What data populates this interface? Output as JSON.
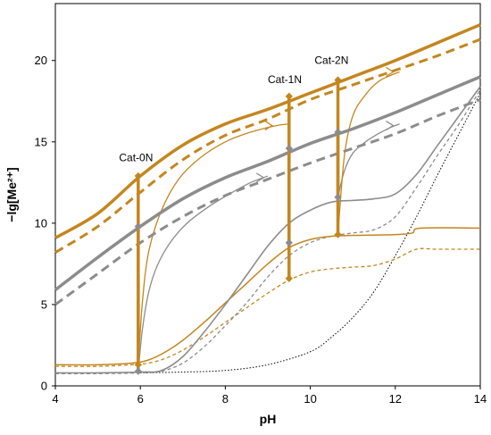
{
  "chart_data": {
    "type": "line",
    "title": "",
    "xlabel": "pH",
    "ylabel": "−lg[Me²⁺]",
    "xlim": [
      4,
      14
    ],
    "ylim": [
      0,
      23.5
    ],
    "xticks": [
      4,
      6,
      8,
      10,
      12,
      14
    ],
    "yticks": [
      0,
      5,
      10,
      15,
      20
    ],
    "grid": false,
    "legend": "none",
    "colors": {
      "orange": "#C4861E",
      "gray": "#8C8C8C",
      "black": "#000000"
    },
    "series": [
      {
        "id": "orange-thick-solid",
        "color": "#C4861E",
        "width": 3.5,
        "dash": "",
        "x": [
          4,
          5,
          6,
          7,
          8,
          9,
          10,
          11,
          12,
          13,
          14
        ],
        "y": [
          9.1,
          10.6,
          12.9,
          14.8,
          16.1,
          17.0,
          18.0,
          19.0,
          20.0,
          21.1,
          22.2
        ]
      },
      {
        "id": "orange-thick-dashed",
        "color": "#C4861E",
        "width": 3,
        "dash": "10,6",
        "x": [
          4,
          5,
          6,
          7,
          8,
          9,
          10,
          11,
          12,
          13,
          14
        ],
        "y": [
          8.2,
          9.8,
          11.9,
          13.9,
          15.4,
          16.4,
          17.6,
          18.5,
          19.4,
          20.3,
          21.3
        ]
      },
      {
        "id": "gray-thick-solid",
        "color": "#8C8C8C",
        "width": 3.5,
        "dash": "",
        "x": [
          4,
          5,
          6,
          7,
          8,
          9,
          10,
          11,
          12,
          13,
          14
        ],
        "y": [
          5.9,
          7.9,
          9.8,
          11.5,
          12.8,
          13.8,
          14.9,
          15.8,
          16.8,
          17.9,
          19.0
        ]
      },
      {
        "id": "gray-thick-dashed",
        "color": "#8C8C8C",
        "width": 3,
        "dash": "10,6",
        "x": [
          4,
          5,
          6,
          7,
          8,
          9,
          10,
          11,
          12,
          13,
          14
        ],
        "y": [
          5.0,
          6.9,
          8.8,
          10.4,
          11.7,
          12.7,
          13.7,
          14.6,
          15.5,
          16.6,
          17.6
        ]
      },
      {
        "id": "orange-thin-solid",
        "color": "#C4861E",
        "width": 1.5,
        "dash": "",
        "x": [
          4,
          5,
          5.8,
          6.2,
          6.6,
          7,
          7.5,
          8,
          8.5,
          9,
          9.5,
          10,
          10.5,
          11,
          12,
          12.4,
          12.6,
          14
        ],
        "y": [
          1.3,
          1.3,
          1.4,
          1.6,
          2.1,
          2.8,
          3.9,
          5.1,
          6.3,
          7.5,
          8.5,
          9.0,
          9.2,
          9.25,
          9.3,
          9.4,
          9.7,
          9.7
        ]
      },
      {
        "id": "orange-thin-dashed",
        "color": "#C4861E",
        "width": 1.3,
        "dash": "4,3",
        "x": [
          4,
          5,
          5.8,
          6.2,
          6.6,
          7,
          7.5,
          8,
          8.5,
          9,
          9.5,
          10,
          10.5,
          11,
          11.5,
          12,
          12.5,
          13,
          14
        ],
        "y": [
          1.2,
          1.2,
          1.3,
          1.4,
          1.7,
          2.2,
          3.0,
          3.9,
          4.8,
          5.7,
          6.5,
          7.0,
          7.2,
          7.3,
          7.4,
          7.8,
          8.4,
          8.4,
          8.4
        ]
      },
      {
        "id": "gray-thin-solid-1",
        "color": "#8C8C8C",
        "width": 1.6,
        "dash": "",
        "x": [
          4,
          5,
          6,
          6.5,
          7,
          7.5,
          8,
          8.5,
          9,
          9.5,
          10,
          10.5,
          11,
          11.5,
          12,
          12.5,
          13,
          13.5,
          14
        ],
        "y": [
          0.8,
          0.8,
          0.85,
          0.95,
          1.8,
          3.3,
          5.0,
          6.8,
          8.6,
          10.0,
          10.8,
          11.3,
          11.4,
          11.5,
          11.8,
          13.0,
          14.8,
          16.6,
          18.4
        ]
      },
      {
        "id": "gray-thin-dashed",
        "color": "#8C8C8C",
        "width": 1.3,
        "dash": "4,3",
        "x": [
          4,
          5,
          6,
          6.5,
          7,
          7.5,
          8,
          8.5,
          9,
          9.5,
          10,
          10.5,
          11,
          11.5,
          12,
          12.5,
          13,
          13.5,
          14
        ],
        "y": [
          0.75,
          0.75,
          0.8,
          0.9,
          1.4,
          2.4,
          3.7,
          5.1,
          6.7,
          8.0,
          8.8,
          9.2,
          9.4,
          9.6,
          10.4,
          12.2,
          14.2,
          16.1,
          18.2
        ]
      },
      {
        "id": "black-dotted",
        "color": "#000000",
        "width": 1,
        "dash": "1.5,2",
        "x": [
          6,
          7,
          8,
          9,
          10,
          10.5,
          11,
          11.5,
          12,
          12.5,
          13,
          13.5,
          14
        ],
        "y": [
          0.8,
          0.85,
          0.95,
          1.3,
          2.1,
          3.0,
          4.2,
          5.8,
          8.0,
          10.4,
          13.0,
          15.5,
          18.0
        ]
      },
      {
        "id": "gray-thin-rise-0N",
        "color": "#8C8C8C",
        "width": 1.3,
        "dash": "",
        "x": [
          5.95,
          6.05,
          6.2,
          6.4,
          6.7,
          7.1,
          7.6,
          8.1,
          8.6,
          9.0
        ],
        "y": [
          0.9,
          3.5,
          5.8,
          7.4,
          8.8,
          10.0,
          11.0,
          11.8,
          12.5,
          12.9
        ]
      },
      {
        "id": "orange-thin-rise-0N",
        "color": "#C4861E",
        "width": 1.3,
        "dash": "",
        "x": [
          5.95,
          6.05,
          6.2,
          6.5,
          6.9,
          7.4,
          8.0,
          8.6,
          9.2,
          9.5
        ],
        "y": [
          1.3,
          5.2,
          8.3,
          10.8,
          12.7,
          14.0,
          15.0,
          15.6,
          16.0,
          16.1
        ]
      },
      {
        "id": "gray-thin-rise-2N",
        "color": "#8C8C8C",
        "width": 1.3,
        "dash": "",
        "x": [
          10.65,
          10.8,
          11.0,
          11.3,
          11.6,
          11.9,
          12.1
        ],
        "y": [
          11.6,
          13.2,
          14.3,
          15.0,
          15.5,
          15.9,
          16.1
        ]
      },
      {
        "id": "orange-thin-rise-2N",
        "color": "#C4861E",
        "width": 1.3,
        "dash": "",
        "x": [
          10.65,
          10.8,
          11.0,
          11.3,
          11.6,
          11.9,
          12.1
        ],
        "y": [
          9.3,
          14.1,
          16.6,
          17.9,
          18.7,
          19.1,
          19.3
        ]
      }
    ],
    "verticals": [
      {
        "label": "Cat-0N",
        "x": 5.95,
        "color": "#8C8C8C",
        "y_bottom": 0.9,
        "y_top": 9.8,
        "width": 3.5
      },
      {
        "label": "Cat-0N",
        "x": 5.95,
        "color": "#C4861E",
        "y_bottom": 1.3,
        "y_top": 12.9,
        "width": 3.5
      },
      {
        "label": "Cat-1N",
        "x": 9.5,
        "color": "#8C8C8C",
        "y_bottom": 8.8,
        "y_top": 14.6,
        "width": 3.5
      },
      {
        "label": "Cat-1N",
        "x": 9.5,
        "color": "#C4861E",
        "y_bottom": 6.6,
        "y_top": 17.8,
        "width": 3.5
      },
      {
        "label": "Cat-2N",
        "x": 10.65,
        "color": "#8C8C8C",
        "y_bottom": 11.6,
        "y_top": 15.6,
        "width": 3.5
      },
      {
        "label": "Cat-2N",
        "x": 10.65,
        "color": "#C4861E",
        "y_bottom": 9.3,
        "y_top": 18.8,
        "width": 3.5
      }
    ],
    "markers": [
      {
        "x": 5.95,
        "y": 12.9,
        "color": "#C4861E"
      },
      {
        "x": 5.95,
        "y": 9.8,
        "color": "#8C8C8C"
      },
      {
        "x": 5.95,
        "y": 1.3,
        "color": "#C4861E"
      },
      {
        "x": 5.95,
        "y": 0.9,
        "color": "#8C8C8C"
      },
      {
        "x": 9.5,
        "y": 17.8,
        "color": "#C4861E"
      },
      {
        "x": 9.5,
        "y": 14.6,
        "color": "#8C8C8C"
      },
      {
        "x": 9.5,
        "y": 8.8,
        "color": "#8C8C8C"
      },
      {
        "x": 9.5,
        "y": 6.6,
        "color": "#C4861E"
      },
      {
        "x": 10.65,
        "y": 18.8,
        "color": "#C4861E"
      },
      {
        "x": 10.65,
        "y": 15.6,
        "color": "#8C8C8C"
      },
      {
        "x": 10.65,
        "y": 11.6,
        "color": "#8C8C8C"
      },
      {
        "x": 10.65,
        "y": 9.3,
        "color": "#C4861E"
      }
    ],
    "arrows": [
      {
        "x": 8.9,
        "y": 12.8,
        "color": "#8C8C8C",
        "direction": "right"
      },
      {
        "x": 9.1,
        "y": 16.0,
        "color": "#C4861E",
        "direction": "right"
      },
      {
        "x": 11.95,
        "y": 16.0,
        "color": "#8C8C8C",
        "direction": "right"
      },
      {
        "x": 11.95,
        "y": 19.3,
        "color": "#C4861E",
        "direction": "right"
      }
    ],
    "annotations": [
      {
        "text": "Cat-0N",
        "x": 5.5,
        "y": 13.8
      },
      {
        "text": "Cat-1N",
        "x": 9.0,
        "y": 18.6
      },
      {
        "text": "Cat-2N",
        "x": 10.1,
        "y": 19.8
      }
    ]
  }
}
